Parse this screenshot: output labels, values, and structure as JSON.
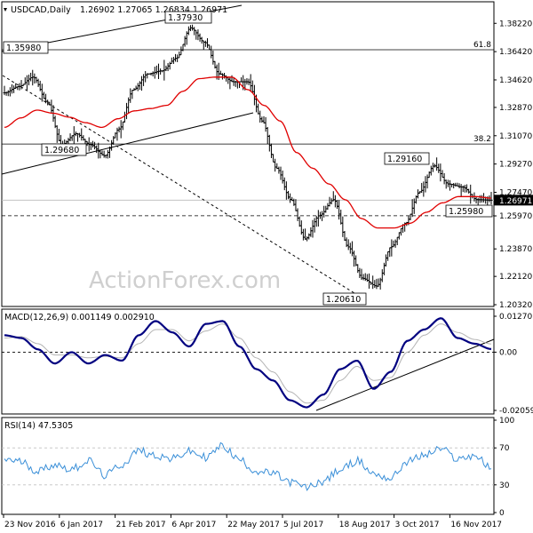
{
  "header": {
    "symbol": "USDCAD,Daily",
    "ohlc": "1.26902 1.27065 1.26834 1.26971"
  },
  "watermark": "ActionForex.com",
  "colors": {
    "bar": "#000000",
    "ma": "#e00000",
    "macd": "#000080",
    "signal": "#b4b4b4",
    "rsi": "#3a8fd8",
    "grid": "#c0c0c0",
    "price_tag": "#000000"
  },
  "chart_data": [
    {
      "type": "ohlc",
      "name": "price",
      "ylim": [
        1.2032,
        1.388
      ],
      "y_ticks": [
        "1.38220",
        "1.36420",
        "1.34620",
        "1.32870",
        "1.31070",
        "1.29270",
        "1.27470",
        "1.25970",
        "1.23870",
        "1.22120",
        "1.20320"
      ],
      "x_labels": [
        "23 Nov 2016",
        "6 Jan 2017",
        "21 Feb 2017",
        "6 Apr 2017",
        "22 May 2017",
        "5 Jul 2017",
        "18 Aug 2017",
        "3 Oct 2017",
        "16 Nov 2017"
      ],
      "fib_levels": [
        {
          "label": "61.8",
          "value": 1.3654
        },
        {
          "label": "38.2",
          "value": 1.3054
        }
      ],
      "current_price": "1.26971",
      "support": "1.25980",
      "annotations": [
        "1.37930",
        "1.35980",
        "1.29680",
        "1.29160",
        "1.20610",
        "1.25980"
      ],
      "ma_anchor_values": [
        1.316,
        1.322,
        1.327,
        1.325,
        1.3225,
        1.319,
        1.316,
        1.3215,
        1.3265,
        1.328,
        1.33,
        1.339,
        1.347,
        1.348,
        1.348,
        1.34,
        1.33,
        1.32,
        1.3,
        1.29,
        1.28,
        1.27,
        1.258,
        1.252,
        1.252,
        1.255,
        1.262,
        1.268,
        1.272,
        1.272,
        1.271
      ],
      "close_anchor_values": [
        1.338,
        1.342,
        1.348,
        1.332,
        1.305,
        1.312,
        1.305,
        1.298,
        1.315,
        1.34,
        1.35,
        1.352,
        1.36,
        1.3793,
        1.37,
        1.35,
        1.345,
        1.345,
        1.32,
        1.29,
        1.27,
        1.245,
        1.26,
        1.27,
        1.24,
        1.22,
        1.215,
        1.24,
        1.255,
        1.275,
        1.2916,
        1.28,
        1.278,
        1.27,
        1.2697
      ]
    },
    {
      "type": "line",
      "name": "MACD(12,26,9)",
      "label": "MACD(12,26,9) 0.001149 0.002910",
      "ylim": [
        -0.020599,
        0.012707
      ],
      "y_ticks": [
        "0.012707",
        "0.00",
        "-0.020599"
      ],
      "macd_anchor_values": [
        0.006,
        0.005,
        0.001,
        -0.004,
        0.0,
        -0.004,
        -0.001,
        -0.003,
        0.006,
        0.011,
        0.007,
        0.002,
        0.01,
        0.011,
        0.002,
        -0.006,
        -0.01,
        -0.017,
        -0.0195,
        -0.015,
        -0.006,
        -0.003,
        -0.013,
        -0.007,
        0.004,
        0.008,
        0.012,
        0.005,
        0.003,
        0.0011
      ],
      "signal_anchor_values": [
        0.005,
        0.0055,
        0.003,
        -0.001,
        -0.001,
        -0.002,
        -0.0015,
        -0.002,
        0.003,
        0.008,
        0.008,
        0.004,
        0.0075,
        0.01,
        0.005,
        -0.002,
        -0.007,
        -0.014,
        -0.018,
        -0.017,
        -0.01,
        -0.005,
        -0.01,
        -0.009,
        0.0,
        0.006,
        0.01,
        0.007,
        0.0045,
        0.0029
      ]
    },
    {
      "type": "line",
      "name": "RSI(14)",
      "label": "RSI(14) 47.5305",
      "ylim": [
        0,
        100
      ],
      "y_ticks": [
        "100",
        "70",
        "30",
        "0"
      ],
      "rsi_anchor_values": [
        58,
        55,
        45,
        52,
        47,
        56,
        40,
        52,
        67,
        62,
        58,
        66,
        60,
        72,
        57,
        45,
        42,
        33,
        27,
        34,
        46,
        56,
        42,
        37,
        55,
        62,
        69,
        58,
        62,
        47.5
      ]
    }
  ]
}
